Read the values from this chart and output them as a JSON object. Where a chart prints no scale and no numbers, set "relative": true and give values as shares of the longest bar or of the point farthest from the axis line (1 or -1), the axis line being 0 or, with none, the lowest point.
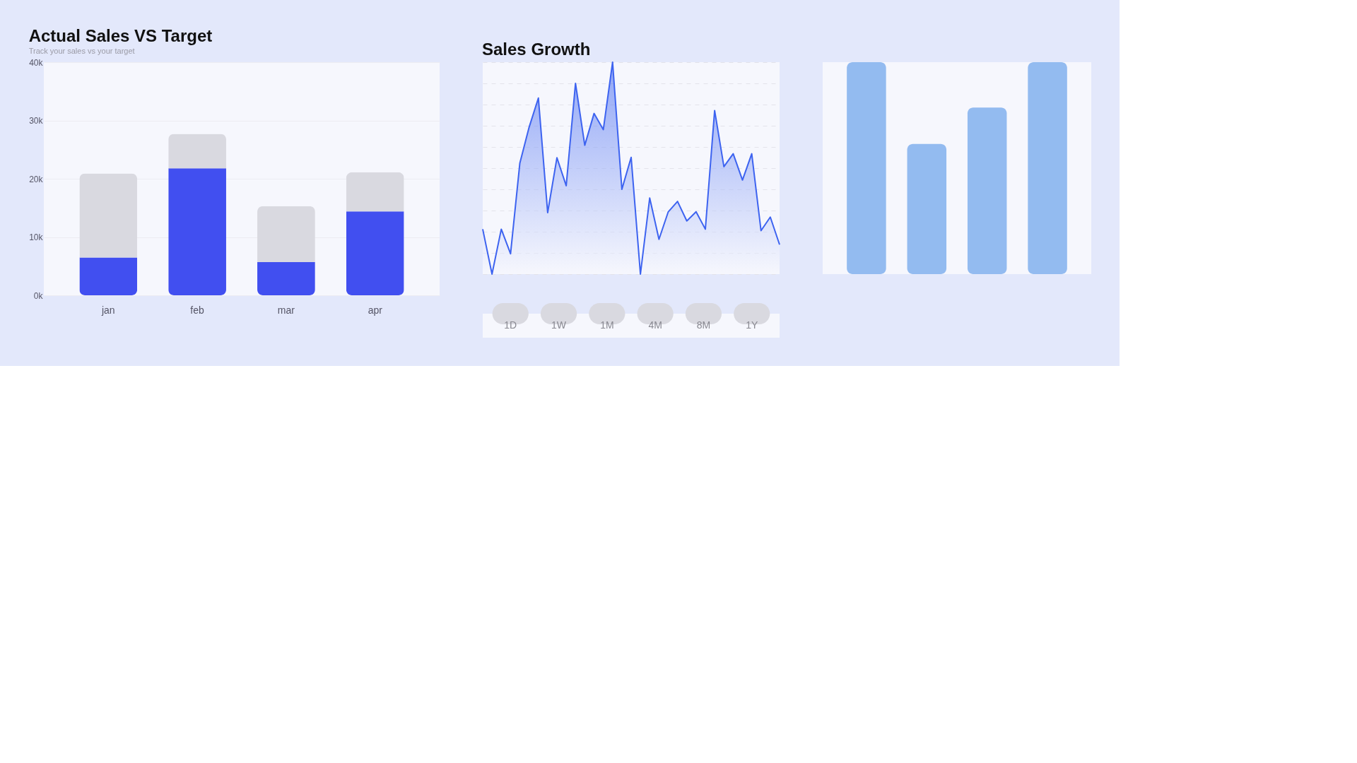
{
  "chart_data": [
    {
      "type": "bar",
      "title": "Actual Sales VS Target",
      "subtitle": "Track your sales vs your target",
      "categories": [
        "jan",
        "feb",
        "mar",
        "apr"
      ],
      "stacked": true,
      "series": [
        {
          "color": "#414ff0",
          "values": [
            6500,
            21800,
            5700,
            14400
          ]
        },
        {
          "color": "#d9d9e0",
          "values": [
            14400,
            5900,
            9600,
            6700
          ]
        }
      ],
      "ylim": [
        0,
        40000
      ],
      "yticks": [
        {
          "value": 0,
          "label": "0k"
        },
        {
          "value": 10000,
          "label": "10k"
        },
        {
          "value": 20000,
          "label": "20k"
        },
        {
          "value": 30000,
          "label": "30k"
        },
        {
          "value": 40000,
          "label": "40k"
        }
      ],
      "grid": "y"
    },
    {
      "type": "area",
      "title": "Sales Growth",
      "relative": true,
      "grid": "y",
      "categories": [
        null,
        null,
        null,
        null,
        null,
        null,
        null,
        null,
        null,
        null,
        null,
        null,
        null,
        null,
        null,
        null,
        null,
        null,
        null,
        null,
        null,
        null,
        null,
        null,
        null,
        null,
        null,
        null,
        null,
        null,
        null,
        null,
        null
      ],
      "series": [
        {
          "color": "#3d63f0",
          "values": [
            0.212,
            0,
            0.212,
            0.096,
            0.523,
            0.693,
            0.831,
            0.29,
            0.549,
            0.417,
            0.9,
            0.608,
            0.758,
            0.682,
            1,
            0.4,
            0.551,
            0,
            0.359,
            0.164,
            0.294,
            0.343,
            0.251,
            0.294,
            0.212,
            0.772,
            0.507,
            0.568,
            0.444,
            0.568,
            0.205,
            0.269,
            0.139
          ]
        }
      ],
      "annotations": [
        "1D",
        "1W",
        "1M",
        "4M",
        "8M",
        "1Y"
      ]
    },
    {
      "type": "bar",
      "relative": true,
      "categories": [
        null,
        null,
        null,
        null
      ],
      "values": [
        1,
        0.614,
        0.786,
        1
      ],
      "color": "#93bbf0"
    }
  ]
}
